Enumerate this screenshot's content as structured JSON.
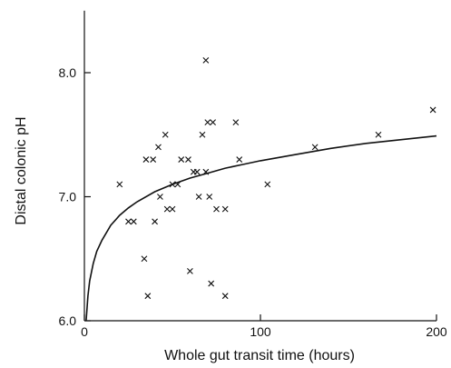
{
  "chart_data": {
    "type": "scatter",
    "xlabel": "Whole gut transit time (hours)",
    "ylabel": "Distal colonic pH",
    "xlim": [
      0,
      200
    ],
    "ylim": [
      6.0,
      8.5
    ],
    "x_ticks": [
      {
        "value": 0,
        "label": "0"
      },
      {
        "value": 100,
        "label": "100"
      },
      {
        "value": 200,
        "label": "200"
      }
    ],
    "y_ticks": [
      {
        "value": 6.0,
        "label": "6.0"
      },
      {
        "value": 7.0,
        "label": "7.0"
      },
      {
        "value": 8.0,
        "label": "8.0"
      }
    ],
    "grid": false,
    "marker": "x",
    "series": [
      {
        "points": [
          {
            "x": 20,
            "y": 7.1
          },
          {
            "x": 25,
            "y": 6.8
          },
          {
            "x": 28,
            "y": 6.8
          },
          {
            "x": 34,
            "y": 6.5
          },
          {
            "x": 35,
            "y": 7.3
          },
          {
            "x": 36,
            "y": 6.2
          },
          {
            "x": 39,
            "y": 7.3
          },
          {
            "x": 40,
            "y": 6.8
          },
          {
            "x": 42,
            "y": 7.4
          },
          {
            "x": 43,
            "y": 7.0
          },
          {
            "x": 46,
            "y": 7.5
          },
          {
            "x": 47,
            "y": 6.9
          },
          {
            "x": 50,
            "y": 6.9
          },
          {
            "x": 50,
            "y": 7.1
          },
          {
            "x": 53,
            "y": 7.1
          },
          {
            "x": 55,
            "y": 7.3
          },
          {
            "x": 59,
            "y": 7.3
          },
          {
            "x": 60,
            "y": 6.4
          },
          {
            "x": 62,
            "y": 7.2
          },
          {
            "x": 64,
            "y": 7.2
          },
          {
            "x": 65,
            "y": 7.0
          },
          {
            "x": 67,
            "y": 7.5
          },
          {
            "x": 69,
            "y": 8.1
          },
          {
            "x": 69,
            "y": 7.2
          },
          {
            "x": 70,
            "y": 7.6
          },
          {
            "x": 71,
            "y": 7.0
          },
          {
            "x": 72,
            "y": 6.3
          },
          {
            "x": 73,
            "y": 7.6
          },
          {
            "x": 75,
            "y": 6.9
          },
          {
            "x": 80,
            "y": 6.9
          },
          {
            "x": 80,
            "y": 6.2
          },
          {
            "x": 86,
            "y": 7.6
          },
          {
            "x": 88,
            "y": 7.3
          },
          {
            "x": 104,
            "y": 7.1
          },
          {
            "x": 131,
            "y": 7.4
          },
          {
            "x": 167,
            "y": 7.5
          },
          {
            "x": 198,
            "y": 7.7
          }
        ]
      }
    ],
    "fit_curve": {
      "type": "logarithmic",
      "points": [
        {
          "x": 1,
          "y": 6.0
        },
        {
          "x": 2,
          "y": 6.2
        },
        {
          "x": 3,
          "y": 6.32
        },
        {
          "x": 5,
          "y": 6.46
        },
        {
          "x": 7,
          "y": 6.56
        },
        {
          "x": 10,
          "y": 6.65
        },
        {
          "x": 15,
          "y": 6.77
        },
        {
          "x": 20,
          "y": 6.85
        },
        {
          "x": 25,
          "y": 6.91
        },
        {
          "x": 30,
          "y": 6.96
        },
        {
          "x": 40,
          "y": 7.04
        },
        {
          "x": 50,
          "y": 7.1
        },
        {
          "x": 60,
          "y": 7.15
        },
        {
          "x": 70,
          "y": 7.19
        },
        {
          "x": 80,
          "y": 7.23
        },
        {
          "x": 90,
          "y": 7.26
        },
        {
          "x": 100,
          "y": 7.29
        },
        {
          "x": 120,
          "y": 7.34
        },
        {
          "x": 140,
          "y": 7.39
        },
        {
          "x": 160,
          "y": 7.43
        },
        {
          "x": 180,
          "y": 7.46
        },
        {
          "x": 200,
          "y": 7.49
        }
      ]
    }
  }
}
